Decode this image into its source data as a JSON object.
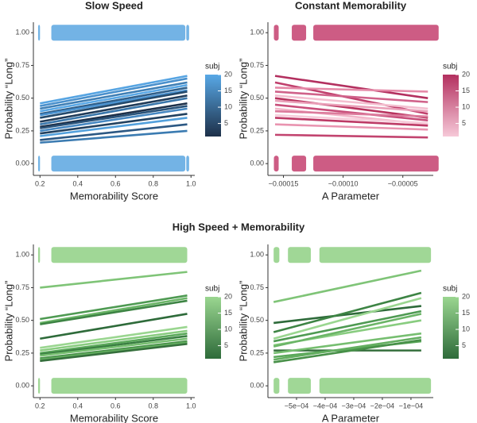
{
  "section_title": "High Speed + Memorability",
  "chart_data": [
    {
      "type": "line",
      "title": "Slow Speed",
      "x_label": "Memorability Score",
      "y_label": "Probability “Long”",
      "xlim": [
        0.165,
        1.02
      ],
      "ylim": [
        -0.09,
        1.08
      ],
      "xticks": [
        0.2,
        0.4,
        0.6,
        0.8,
        {
          "value": 1,
          "label": "1.0"
        }
      ],
      "yticks": [
        {
          "value": 0,
          "label": "0.00"
        },
        {
          "value": 0.25,
          "label": "0.25"
        },
        {
          "value": 0.5,
          "label": "0.50"
        },
        {
          "value": 0.75,
          "label": "0.75"
        },
        {
          "value": 1,
          "label": "1.00"
        }
      ],
      "point_rows": [
        0,
        1
      ],
      "point_x_ranges": [
        [
          0.19,
          0.2
        ],
        [
          0.26,
          0.97
        ],
        [
          0.975,
          0.99
        ]
      ],
      "point_color": "#5aa6e0",
      "colorbar": {
        "title": "subj",
        "range": [
          1,
          20
        ],
        "ticks": [
          5,
          10,
          15,
          20
        ],
        "colors": [
          "#1d3049",
          "#58a8e6"
        ]
      },
      "x": [
        0.2,
        0.98
      ],
      "series": [
        {
          "color": "#56a4e2",
          "values": [
            0.46,
            0.67
          ]
        },
        {
          "color": "#4a90cc",
          "values": [
            0.44,
            0.65
          ]
        },
        {
          "color": "#3f7fb5",
          "values": [
            0.42,
            0.62
          ]
        },
        {
          "color": "#5aa8e6",
          "values": [
            0.4,
            0.6
          ]
        },
        {
          "color": "#2f5f8a",
          "values": [
            0.38,
            0.58
          ]
        },
        {
          "color": "#4c94d2",
          "values": [
            0.37,
            0.56
          ]
        },
        {
          "color": "#244a6c",
          "values": [
            0.35,
            0.55
          ]
        },
        {
          "color": "#1f3a57",
          "values": [
            0.32,
            0.52
          ]
        },
        {
          "color": "#3a77ab",
          "values": [
            0.3,
            0.5
          ]
        },
        {
          "color": "#1d3049",
          "values": [
            0.28,
            0.46
          ]
        },
        {
          "color": "#2a5379",
          "values": [
            0.27,
            0.44
          ]
        },
        {
          "color": "#4688c2",
          "values": [
            0.25,
            0.42
          ]
        },
        {
          "color": "#22415f",
          "values": [
            0.23,
            0.38
          ]
        },
        {
          "color": "#52a0dc",
          "values": [
            0.21,
            0.35
          ]
        },
        {
          "color": "#2c5883",
          "values": [
            0.18,
            0.3
          ]
        },
        {
          "color": "#3b7bb1",
          "values": [
            0.16,
            0.25
          ]
        }
      ]
    },
    {
      "type": "line",
      "title": "Constant Memorability",
      "x_label": "A Parameter",
      "y_label": "Probability “Long”",
      "xlim": [
        -0.000163,
        -2.45e-05
      ],
      "ylim": [
        -0.09,
        1.08
      ],
      "xticks": [
        {
          "value": -0.00015,
          "label": "−0.00015"
        },
        {
          "value": -0.0001,
          "label": "−0.00010"
        },
        {
          "value": -5e-05,
          "label": "−0.00005"
        }
      ],
      "yticks": [
        {
          "value": 0,
          "label": "0.00"
        },
        {
          "value": 0.25,
          "label": "0.25"
        },
        {
          "value": 0.5,
          "label": "0.50"
        },
        {
          "value": 0.75,
          "label": "0.75"
        },
        {
          "value": 1,
          "label": "1.00"
        }
      ],
      "point_rows": [
        0,
        1
      ],
      "point_x_ranges": [
        [
          -0.000158,
          -0.000154
        ],
        [
          -0.000143,
          -0.000131
        ],
        [
          -0.000125,
          -2e-05
        ]
      ],
      "point_color": "#c4406e",
      "colorbar": {
        "title": "subj",
        "range": [
          1,
          20
        ],
        "ticks": [
          5,
          10,
          15,
          20
        ],
        "colors": [
          "#f6c9d8",
          "#b3305f"
        ]
      },
      "x": [
        -0.000157,
        -2.9e-05
      ],
      "series": [
        {
          "color": "#b3305f",
          "values": [
            0.67,
            0.5
          ]
        },
        {
          "color": "#c0406d",
          "values": [
            0.62,
            0.38
          ]
        },
        {
          "color": "#e58aa8",
          "values": [
            0.58,
            0.55
          ]
        },
        {
          "color": "#d0628a",
          "values": [
            0.55,
            0.47
          ]
        },
        {
          "color": "#f4bfd0",
          "values": [
            0.52,
            0.42
          ]
        },
        {
          "color": "#b8345f",
          "values": [
            0.5,
            0.35
          ]
        },
        {
          "color": "#eaa0b9",
          "values": [
            0.48,
            0.4
          ]
        },
        {
          "color": "#c84e7a",
          "values": [
            0.45,
            0.33
          ]
        },
        {
          "color": "#f2b6c9",
          "values": [
            0.42,
            0.3
          ]
        },
        {
          "color": "#dc7b9c",
          "values": [
            0.4,
            0.36
          ]
        },
        {
          "color": "#f7cddb",
          "values": [
            0.37,
            0.31
          ]
        },
        {
          "color": "#bd3a66",
          "values": [
            0.35,
            0.29
          ]
        },
        {
          "color": "#e994b0",
          "values": [
            0.3,
            0.26
          ]
        },
        {
          "color": "#c2446f",
          "values": [
            0.22,
            0.2
          ]
        }
      ]
    },
    {
      "type": "line",
      "x_label": "Memorability Score",
      "y_label": "Probability “Long”",
      "xlim": [
        0.165,
        1.02
      ],
      "ylim": [
        -0.09,
        1.08
      ],
      "xticks": [
        0.2,
        0.4,
        0.6,
        0.8,
        {
          "value": 1,
          "label": "1.0"
        }
      ],
      "yticks": [
        {
          "value": 0,
          "label": "0.00"
        },
        {
          "value": 0.25,
          "label": "0.25"
        },
        {
          "value": 0.5,
          "label": "0.50"
        },
        {
          "value": 0.75,
          "label": "0.75"
        },
        {
          "value": 1,
          "label": "1.00"
        }
      ],
      "point_rows": [
        0,
        1
      ],
      "point_x_ranges": [
        [
          0.19,
          0.2
        ],
        [
          0.26,
          0.98
        ]
      ],
      "point_color": "#8fd084",
      "colorbar": {
        "title": "subj",
        "range": [
          1,
          20
        ],
        "ticks": [
          5,
          10,
          15,
          20
        ],
        "colors": [
          "#2e6b3a",
          "#9ad690"
        ]
      },
      "x": [
        0.2,
        0.98
      ],
      "series": [
        {
          "color": "#7fc477",
          "values": [
            0.75,
            0.87
          ]
        },
        {
          "color": "#4e9a52",
          "values": [
            0.51,
            0.69
          ]
        },
        {
          "color": "#6bb567",
          "values": [
            0.48,
            0.67
          ]
        },
        {
          "color": "#3d8444",
          "values": [
            0.47,
            0.65
          ]
        },
        {
          "color": "#2e6b3a",
          "values": [
            0.36,
            0.55
          ]
        },
        {
          "color": "#9ad690",
          "values": [
            0.29,
            0.45
          ]
        },
        {
          "color": "#88cc7f",
          "values": [
            0.27,
            0.42
          ]
        },
        {
          "color": "#5aa85a",
          "values": [
            0.25,
            0.4
          ]
        },
        {
          "color": "#3a7f42",
          "values": [
            0.24,
            0.38
          ]
        },
        {
          "color": "#76be70",
          "values": [
            0.23,
            0.36
          ]
        },
        {
          "color": "#479048",
          "values": [
            0.21,
            0.34
          ]
        },
        {
          "color": "#63ae60",
          "values": [
            0.2,
            0.33
          ]
        },
        {
          "color": "#356f3c",
          "values": [
            0.19,
            0.32
          ]
        }
      ]
    },
    {
      "type": "line",
      "x_label": "A Parameter",
      "y_label": "Probability “Long”",
      "xlim": [
        -0.0006,
        -2.2e-05
      ],
      "ylim": [
        -0.09,
        1.08
      ],
      "xticks": [
        {
          "value": -0.0005,
          "label": "−5e−04"
        },
        {
          "value": -0.0004,
          "label": "−4e−04"
        },
        {
          "value": -0.0003,
          "label": "−3e−04"
        },
        {
          "value": -0.0002,
          "label": "−2e−04"
        },
        {
          "value": -0.0001,
          "label": "−1e−04"
        }
      ],
      "yticks": [
        {
          "value": 0,
          "label": "0.00"
        },
        {
          "value": 0.25,
          "label": "0.25"
        },
        {
          "value": 0.5,
          "label": "0.50"
        },
        {
          "value": 0.75,
          "label": "0.75"
        },
        {
          "value": 1,
          "label": "1.00"
        }
      ],
      "point_rows": [
        0,
        1
      ],
      "point_x_ranges": [
        [
          -0.00058,
          -0.00056
        ],
        [
          -0.00053,
          -0.00045
        ],
        [
          -0.00042,
          -3e-05
        ]
      ],
      "point_color": "#8fd084",
      "colorbar": {
        "title": "subj",
        "range": [
          1,
          20
        ],
        "ticks": [
          5,
          10,
          15,
          20
        ],
        "colors": [
          "#2e6b3a",
          "#9ad690"
        ]
      },
      "x": [
        -0.00058,
        -6.4e-05
      ],
      "series": [
        {
          "color": "#7fc477",
          "values": [
            0.64,
            0.88
          ]
        },
        {
          "color": "#2e6b3a",
          "values": [
            0.48,
            0.61
          ]
        },
        {
          "color": "#3d8444",
          "values": [
            0.41,
            0.71
          ]
        },
        {
          "color": "#9ad690",
          "values": [
            0.36,
            0.67
          ]
        },
        {
          "color": "#4e9a52",
          "values": [
            0.34,
            0.57
          ]
        },
        {
          "color": "#88cc7f",
          "values": [
            0.31,
            0.5
          ]
        },
        {
          "color": "#6bb567",
          "values": [
            0.3,
            0.55
          ]
        },
        {
          "color": "#356f3c",
          "values": [
            0.27,
            0.27
          ]
        },
        {
          "color": "#76be70",
          "values": [
            0.25,
            0.4
          ]
        },
        {
          "color": "#5aa85a",
          "values": [
            0.22,
            0.34
          ]
        },
        {
          "color": "#63ae60",
          "values": [
            0.2,
            0.37
          ]
        },
        {
          "color": "#479048",
          "values": [
            0.18,
            0.35
          ]
        }
      ]
    }
  ]
}
